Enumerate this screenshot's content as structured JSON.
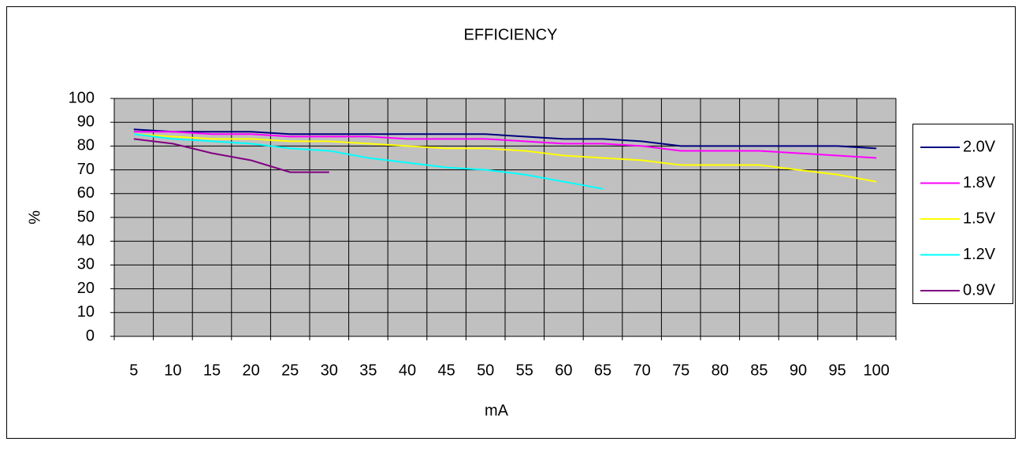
{
  "chart_data": {
    "type": "line",
    "title": "EFFICIENCY",
    "x_label": "mA",
    "y_label": "%",
    "categories": [
      "5",
      "10",
      "15",
      "20",
      "25",
      "30",
      "35",
      "40",
      "45",
      "50",
      "55",
      "60",
      "65",
      "70",
      "75",
      "80",
      "85",
      "90",
      "95",
      "100"
    ],
    "series": [
      {
        "name": "2.0V",
        "color": "#000080",
        "values": [
          87,
          86,
          86,
          86,
          85,
          85,
          85,
          85,
          85,
          85,
          84,
          83,
          83,
          82,
          80,
          80,
          80,
          80,
          80,
          79
        ]
      },
      {
        "name": "1.8V",
        "color": "#ff00ff",
        "values": [
          86,
          86,
          85,
          85,
          84,
          84,
          84,
          83,
          83,
          83,
          82,
          81,
          81,
          80,
          78,
          78,
          78,
          77,
          76,
          75
        ]
      },
      {
        "name": "1.5V",
        "color": "#ffff00",
        "values": [
          85,
          84,
          83,
          83,
          82,
          82,
          81,
          80,
          79,
          79,
          78,
          76,
          75,
          74,
          72,
          72,
          72,
          70,
          68,
          65
        ]
      },
      {
        "name": "1.2V",
        "color": "#00ffff",
        "values": [
          85,
          83,
          82,
          81,
          79,
          78,
          75,
          73,
          71,
          70,
          68,
          65,
          62,
          null,
          null,
          null,
          null,
          null,
          null,
          null
        ]
      },
      {
        "name": "0.9V",
        "color": "#800080",
        "values": [
          83,
          81,
          77,
          74,
          69,
          69,
          null,
          null,
          null,
          null,
          null,
          null,
          null,
          null,
          null,
          null,
          null,
          null,
          null,
          null
        ]
      }
    ],
    "ylim": [
      0,
      100
    ],
    "yticks": [
      0,
      10,
      20,
      30,
      40,
      50,
      60,
      70,
      80,
      90,
      100
    ],
    "grid": true,
    "legend": "right"
  }
}
